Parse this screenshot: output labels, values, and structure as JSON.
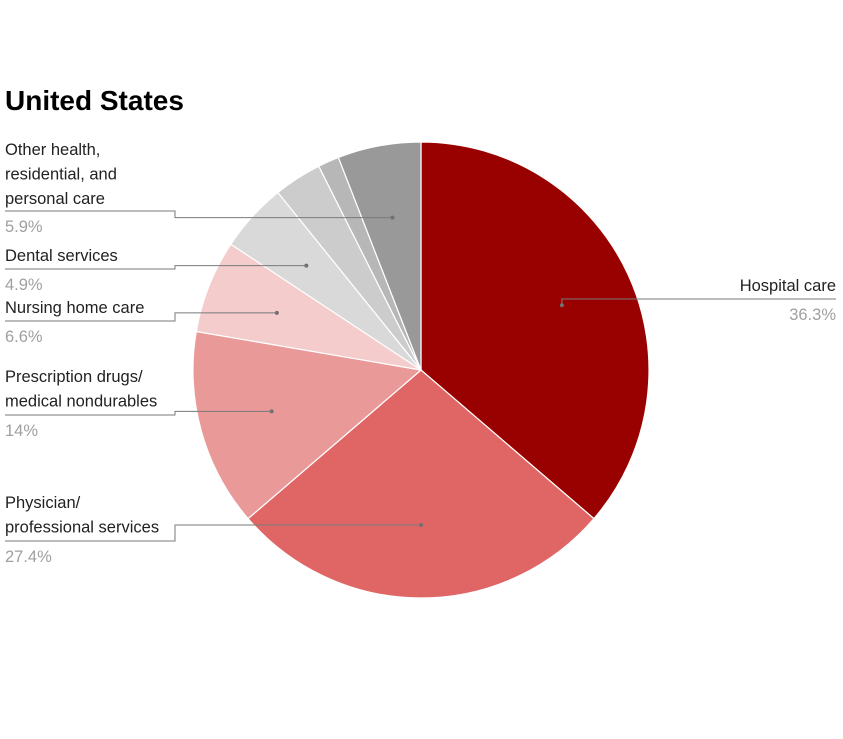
{
  "chart_data": {
    "type": "pie",
    "title": "United States",
    "start_angle_deg": 0,
    "direction": "clockwise",
    "slices": [
      {
        "label": "Hospital care",
        "value_label": "36.3%",
        "value": 36.3,
        "color": "#990000",
        "labeled": true
      },
      {
        "label": "Physician/\nprofessional services",
        "value_label": "27.4%",
        "value": 27.4,
        "color": "#e06666",
        "labeled": true
      },
      {
        "label": "Prescription drugs/\nmedical nondurables",
        "value_label": "14%",
        "value": 14.0,
        "color": "#ea9999",
        "labeled": true
      },
      {
        "label": "Nursing home care",
        "value_label": "6.6%",
        "value": 6.6,
        "color": "#f4cccc",
        "labeled": true
      },
      {
        "label": "Dental services",
        "value_label": "4.9%",
        "value": 4.9,
        "color": "#d9d9d9",
        "labeled": true
      },
      {
        "label": "",
        "value_label": "",
        "value": 3.4,
        "color": "#cccccc",
        "labeled": false
      },
      {
        "label": "",
        "value_label": "",
        "value": 1.5,
        "color": "#b7b7b7",
        "labeled": false
      },
      {
        "label": "Other health,\nresidential, and\npersonal care",
        "value_label": "5.9%",
        "value": 5.9,
        "color": "#999999",
        "labeled": true
      }
    ]
  }
}
